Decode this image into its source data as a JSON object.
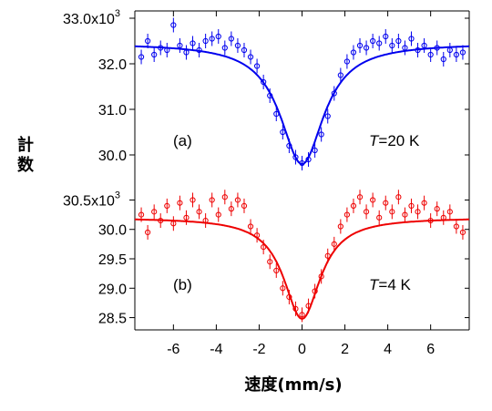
{
  "chart_data": [
    {
      "type": "scatter",
      "panel_label": "(a)",
      "annotation": {
        "italic": "T",
        "text": "=20 K"
      },
      "ylabel": "計数",
      "xlabel": "速度(mm/s)",
      "xlim": [
        -7.8,
        7.8
      ],
      "ylim": [
        29.7,
        33.0
      ],
      "y_ticks": [
        {
          "value": 33.0,
          "label": "33.0x10",
          "exp": "3"
        },
        {
          "value": 32.0,
          "label": "32.0"
        },
        {
          "value": 31.0,
          "label": "31.0"
        },
        {
          "value": 30.0,
          "label": "30.0"
        }
      ],
      "color": "#0000ee",
      "fit": {
        "baseline": 32.45,
        "depth": 2.65,
        "center": 0.0,
        "hwhm": 1.25
      },
      "series": [
        {
          "x": [
            -7.5,
            -7.2,
            -6.9,
            -6.6,
            -6.3,
            -6.0,
            -5.7,
            -5.4,
            -5.1,
            -4.8,
            -4.5,
            -4.2,
            -3.9,
            -3.6,
            -3.3,
            -3.0,
            -2.7,
            -2.4,
            -2.1,
            -1.8,
            -1.5,
            -1.2,
            -0.9,
            -0.6,
            -0.3,
            0.0,
            0.3,
            0.6,
            0.9,
            1.2,
            1.5,
            1.8,
            2.1,
            2.4,
            2.7,
            3.0,
            3.3,
            3.6,
            3.9,
            4.2,
            4.5,
            4.8,
            5.1,
            5.4,
            5.7,
            6.0,
            6.3,
            6.6,
            6.9,
            7.2,
            7.5
          ],
          "y": [
            32.15,
            32.5,
            32.2,
            32.35,
            32.3,
            32.85,
            32.4,
            32.25,
            32.45,
            32.3,
            32.5,
            32.55,
            32.6,
            32.35,
            32.55,
            32.4,
            32.3,
            32.15,
            31.95,
            31.6,
            31.3,
            30.9,
            30.5,
            30.2,
            29.95,
            29.82,
            29.9,
            30.1,
            30.45,
            30.85,
            31.35,
            31.75,
            32.05,
            32.25,
            32.4,
            32.35,
            32.5,
            32.45,
            32.6,
            32.4,
            32.5,
            32.35,
            32.55,
            32.3,
            32.4,
            32.2,
            32.35,
            32.1,
            32.3,
            32.2,
            32.25
          ]
        }
      ]
    },
    {
      "type": "scatter",
      "panel_label": "(b)",
      "annotation": {
        "italic": "T",
        "text": "=4 K"
      },
      "xlim": [
        -7.8,
        7.8
      ],
      "ylim": [
        28.4,
        30.6
      ],
      "y_ticks": [
        {
          "value": 30.5,
          "label": "30.5x10",
          "exp": "3"
        },
        {
          "value": 30.0,
          "label": "30.0"
        },
        {
          "value": 29.5,
          "label": "29.5"
        },
        {
          "value": 29.0,
          "label": "29.0"
        },
        {
          "value": 28.5,
          "label": "28.5"
        }
      ],
      "x_ticks": [
        {
          "value": -6,
          "label": "-6"
        },
        {
          "value": -4,
          "label": "-4"
        },
        {
          "value": -2,
          "label": "-2"
        },
        {
          "value": 0,
          "label": "0"
        },
        {
          "value": 2,
          "label": "2"
        },
        {
          "value": 4,
          "label": "4"
        },
        {
          "value": 6,
          "label": "6"
        }
      ],
      "color": "#ee0000",
      "fit": {
        "baseline": 30.2,
        "depth": 1.72,
        "center": 0.0,
        "hwhm": 1.05
      },
      "series": [
        {
          "x": [
            -7.5,
            -7.2,
            -6.9,
            -6.6,
            -6.3,
            -6.0,
            -5.7,
            -5.4,
            -5.1,
            -4.8,
            -4.5,
            -4.2,
            -3.9,
            -3.6,
            -3.3,
            -3.0,
            -2.7,
            -2.4,
            -2.1,
            -1.8,
            -1.5,
            -1.2,
            -0.9,
            -0.6,
            -0.3,
            0.0,
            0.3,
            0.6,
            0.9,
            1.2,
            1.5,
            1.8,
            2.1,
            2.4,
            2.7,
            3.0,
            3.3,
            3.6,
            3.9,
            4.2,
            4.5,
            4.8,
            5.1,
            5.4,
            5.7,
            6.0,
            6.3,
            6.6,
            6.9,
            7.2,
            7.5
          ],
          "y": [
            30.25,
            29.95,
            30.3,
            30.15,
            30.4,
            30.1,
            30.45,
            30.2,
            30.5,
            30.3,
            30.15,
            30.5,
            30.25,
            30.55,
            30.35,
            30.5,
            30.4,
            30.05,
            29.9,
            29.7,
            29.45,
            29.3,
            29.0,
            28.85,
            28.65,
            28.55,
            28.7,
            28.95,
            29.2,
            29.55,
            29.75,
            30.05,
            30.25,
            30.4,
            30.55,
            30.3,
            30.5,
            30.2,
            30.45,
            30.3,
            30.55,
            30.25,
            30.4,
            30.3,
            30.45,
            30.15,
            30.35,
            30.2,
            30.3,
            30.05,
            29.95
          ]
        }
      ]
    }
  ]
}
